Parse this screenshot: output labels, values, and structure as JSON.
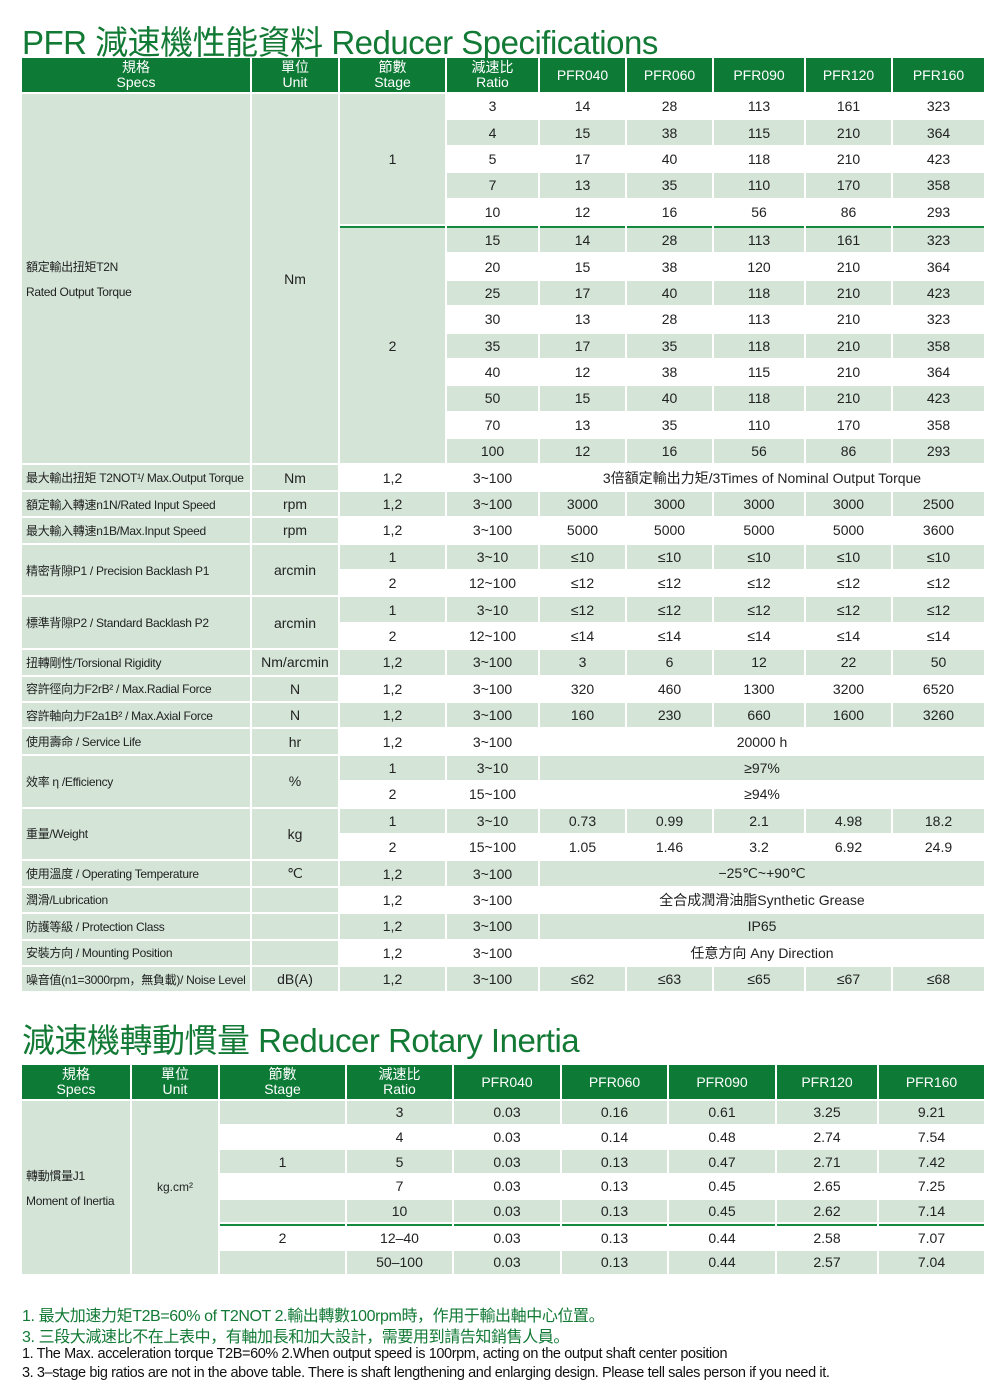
{
  "spec_title": "PFR 減速機性能資料   Reducer Specifications",
  "inertia_title": "減速機轉動慣量 Reducer Rotary Inertia",
  "colors": {
    "brand_green": "#0d7a36",
    "row_shade": "#d4e5d8",
    "title_green": "#127a35"
  },
  "headers": [
    {
      "zh": "規格",
      "en": "Specs"
    },
    {
      "zh": "單位",
      "en": "Unit"
    },
    {
      "zh": "節數",
      "en": "Stage"
    },
    {
      "zh": "減速比",
      "en": "Ratio"
    }
  ],
  "models": [
    "PFR040",
    "PFR060",
    "PFR090",
    "PFR120",
    "PFR160"
  ],
  "spec_sections": [
    {
      "spec": [
        "額定輸出扭矩T2N",
        "Rated Output Torque"
      ],
      "unit": "Nm",
      "groups": [
        {
          "stage": "1",
          "rows": [
            {
              "ratio": "3",
              "values": [
                "14",
                "28",
                "113",
                "161",
                "323"
              ]
            },
            {
              "ratio": "4",
              "values": [
                "15",
                "38",
                "115",
                "210",
                "364"
              ]
            },
            {
              "ratio": "5",
              "values": [
                "17",
                "40",
                "118",
                "210",
                "423"
              ]
            },
            {
              "ratio": "7",
              "values": [
                "13",
                "35",
                "110",
                "170",
                "358"
              ]
            },
            {
              "ratio": "10",
              "values": [
                "12",
                "16",
                "56",
                "86",
                "293"
              ]
            }
          ]
        },
        {
          "stage": "2",
          "rows": [
            {
              "ratio": "15",
              "values": [
                "14",
                "28",
                "113",
                "161",
                "323"
              ]
            },
            {
              "ratio": "20",
              "values": [
                "15",
                "38",
                "120",
                "210",
                "364"
              ]
            },
            {
              "ratio": "25",
              "values": [
                "17",
                "40",
                "118",
                "210",
                "423"
              ]
            },
            {
              "ratio": "30",
              "values": [
                "13",
                "28",
                "113",
                "210",
                "323"
              ]
            },
            {
              "ratio": "35",
              "values": [
                "17",
                "35",
                "118",
                "210",
                "358"
              ]
            },
            {
              "ratio": "40",
              "values": [
                "12",
                "38",
                "115",
                "210",
                "364"
              ]
            },
            {
              "ratio": "50",
              "values": [
                "15",
                "40",
                "118",
                "210",
                "423"
              ]
            },
            {
              "ratio": "70",
              "values": [
                "13",
                "35",
                "110",
                "170",
                "358"
              ]
            },
            {
              "ratio": "100",
              "values": [
                "12",
                "16",
                "56",
                "86",
                "293"
              ]
            }
          ]
        }
      ]
    },
    {
      "spec": [
        "最大輸出扭矩 T2NOT¹/ Max.Output Torque"
      ],
      "unit": "Nm",
      "groups": [
        {
          "stage": "1,2",
          "rows": [
            {
              "ratio": "3~100",
              "span": "3倍額定輸出力矩/3Times of Nominal Output Torque"
            }
          ]
        }
      ]
    },
    {
      "spec": [
        "額定輸入轉速n1N/Rated Input Speed"
      ],
      "unit": "rpm",
      "groups": [
        {
          "stage": "1,2",
          "rows": [
            {
              "ratio": "3~100",
              "values": [
                "3000",
                "3000",
                "3000",
                "3000",
                "2500"
              ]
            }
          ]
        }
      ]
    },
    {
      "spec": [
        "最大輸入轉速n1B/Max.Input Speed"
      ],
      "unit": "rpm",
      "groups": [
        {
          "stage": "1,2",
          "rows": [
            {
              "ratio": "3~100",
              "values": [
                "5000",
                "5000",
                "5000",
                "5000",
                "3600"
              ]
            }
          ]
        }
      ]
    },
    {
      "spec": [
        "精密背隙P1 / Precision Backlash P1"
      ],
      "unit": "arcmin",
      "groups": [
        {
          "stage": "1",
          "rows": [
            {
              "ratio": "3~10",
              "values": [
                "≤10",
                "≤10",
                "≤10",
                "≤10",
                "≤10"
              ]
            }
          ]
        },
        {
          "stage": "2",
          "rows": [
            {
              "ratio": "12~100",
              "values": [
                "≤12",
                "≤12",
                "≤12",
                "≤12",
                "≤12"
              ]
            }
          ]
        }
      ]
    },
    {
      "spec": [
        "標準背隙P2 / Standard Backlash P2"
      ],
      "unit": "arcmin",
      "groups": [
        {
          "stage": "1",
          "rows": [
            {
              "ratio": "3~10",
              "values": [
                "≤12",
                "≤12",
                "≤12",
                "≤12",
                "≤12"
              ]
            }
          ]
        },
        {
          "stage": "2",
          "rows": [
            {
              "ratio": "12~100",
              "values": [
                "≤14",
                "≤14",
                "≤14",
                "≤14",
                "≤14"
              ]
            }
          ]
        }
      ]
    },
    {
      "spec": [
        "扭轉剛性/Torsional Rigidity"
      ],
      "unit": "Nm/arcmin",
      "groups": [
        {
          "stage": "1,2",
          "rows": [
            {
              "ratio": "3~100",
              "values": [
                "3",
                "6",
                "12",
                "22",
                "50"
              ]
            }
          ]
        }
      ]
    },
    {
      "spec": [
        "容許徑向力F2rB² / Max.Radial Force"
      ],
      "unit": "N",
      "groups": [
        {
          "stage": "1,2",
          "rows": [
            {
              "ratio": "3~100",
              "values": [
                "320",
                "460",
                "1300",
                "3200",
                "6520"
              ]
            }
          ]
        }
      ]
    },
    {
      "spec": [
        "容許軸向力F2a1B² / Max.Axial Force"
      ],
      "unit": "N",
      "groups": [
        {
          "stage": "1,2",
          "rows": [
            {
              "ratio": "3~100",
              "values": [
                "160",
                "230",
                "660",
                "1600",
                "3260"
              ]
            }
          ]
        }
      ]
    },
    {
      "spec": [
        "使用壽命 / Service Life"
      ],
      "unit": "hr",
      "groups": [
        {
          "stage": "1,2",
          "rows": [
            {
              "ratio": "3~100",
              "span": "20000 h"
            }
          ]
        }
      ]
    },
    {
      "spec": [
        "效率 η /Efficiency"
      ],
      "unit": "%",
      "groups": [
        {
          "stage": "1",
          "rows": [
            {
              "ratio": "3~10",
              "span": "≥97%"
            }
          ]
        },
        {
          "stage": "2",
          "rows": [
            {
              "ratio": "15~100",
              "span": "≥94%"
            }
          ]
        }
      ]
    },
    {
      "spec": [
        "重量/Weight"
      ],
      "unit": "kg",
      "groups": [
        {
          "stage": "1",
          "rows": [
            {
              "ratio": "3~10",
              "values": [
                "0.73",
                "0.99",
                "2.1",
                "4.98",
                "18.2"
              ]
            }
          ]
        },
        {
          "stage": "2",
          "rows": [
            {
              "ratio": "15~100",
              "values": [
                "1.05",
                "1.46",
                "3.2",
                "6.92",
                "24.9"
              ]
            }
          ]
        }
      ]
    },
    {
      "spec": [
        "使用溫度 / Operating Temperature"
      ],
      "unit": "℃",
      "groups": [
        {
          "stage": "1,2",
          "rows": [
            {
              "ratio": "3~100",
              "span": "−25℃~+90℃"
            }
          ]
        }
      ]
    },
    {
      "spec": [
        "潤滑/Lubrication"
      ],
      "unit": "",
      "groups": [
        {
          "stage": "1,2",
          "rows": [
            {
              "ratio": "3~100",
              "span": "全合成潤滑油脂Synthetic Grease"
            }
          ]
        }
      ]
    },
    {
      "spec": [
        "防護等級 / Protection Class"
      ],
      "unit": "",
      "groups": [
        {
          "stage": "1,2",
          "rows": [
            {
              "ratio": "3~100",
              "span": "IP65"
            }
          ]
        }
      ]
    },
    {
      "spec": [
        "安裝方向 / Mounting Position"
      ],
      "unit": "",
      "groups": [
        {
          "stage": "1,2",
          "rows": [
            {
              "ratio": "3~100",
              "span": "任意方向 Any Direction"
            }
          ]
        }
      ]
    },
    {
      "spec": [
        "噪音值(n1=3000rpm，無負載)/ Noise Level"
      ],
      "unit": "dB(A)",
      "groups": [
        {
          "stage": "1,2",
          "rows": [
            {
              "ratio": "3~100",
              "values": [
                "≤62",
                "≤63",
                "≤65",
                "≤67",
                "≤68"
              ]
            }
          ]
        }
      ]
    }
  ],
  "inertia": {
    "spec": [
      "轉動慣量J1",
      "Moment of Inertia"
    ],
    "unit": "kg.cm²",
    "rows": [
      {
        "stage": "",
        "ratio": "3",
        "values": [
          "0.03",
          "0.16",
          "0.61",
          "3.25",
          "9.21"
        ]
      },
      {
        "stage": "",
        "ratio": "4",
        "values": [
          "0.03",
          "0.14",
          "0.48",
          "2.74",
          "7.54"
        ]
      },
      {
        "stage": "1",
        "ratio": "5",
        "values": [
          "0.03",
          "0.13",
          "0.47",
          "2.71",
          "7.42"
        ]
      },
      {
        "stage": "",
        "ratio": "7",
        "values": [
          "0.03",
          "0.13",
          "0.45",
          "2.65",
          "7.25"
        ]
      },
      {
        "stage": "",
        "ratio": "10",
        "values": [
          "0.03",
          "0.13",
          "0.45",
          "2.62",
          "7.14"
        ]
      },
      {
        "stage": "2",
        "ratio": "12–40",
        "values": [
          "0.03",
          "0.13",
          "0.44",
          "2.58",
          "7.07"
        ]
      },
      {
        "stage": "",
        "ratio": "50–100",
        "values": [
          "0.03",
          "0.13",
          "0.44",
          "2.57",
          "7.04"
        ]
      }
    ]
  },
  "notes": {
    "zh": [
      "1. 最大加速力矩T2B=60% of T2NOT     2.輸出轉數100rpm時，作用于輸出軸中心位置。",
      "3. 三段大減速比不在上表中，有軸加長和加大設計，需要用到請告知銷售人員。"
    ],
    "en": [
      "1. The Max. acceleration torque T2B=60%     2.When output speed is 100rpm, acting on the output shaft center position",
      "3. 3–stage big ratios are not in the above table. There is shaft lengthening and enlarging design. Please tell sales person if you need it."
    ]
  }
}
